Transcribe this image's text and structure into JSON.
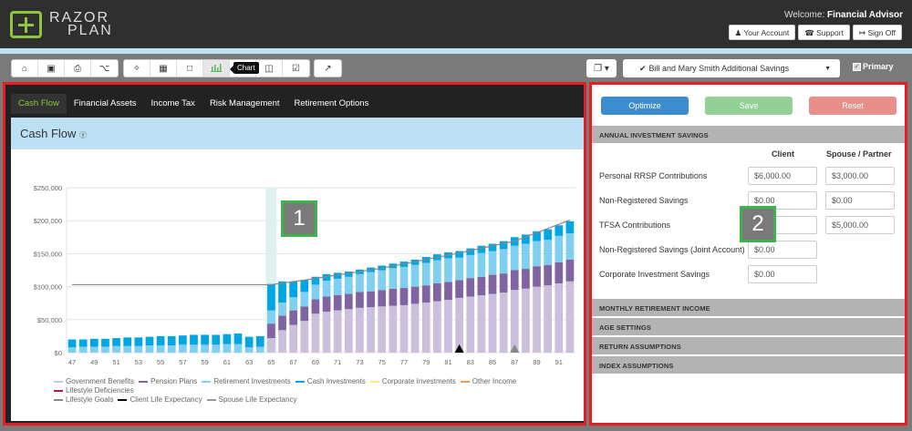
{
  "header": {
    "logo_line1": "RAZOR",
    "logo_line2": "PLAN",
    "welcome_label": "Welcome:",
    "welcome_user": "Financial Advisor",
    "buttons": [
      {
        "icon": "user-icon",
        "glyph": "♟",
        "label": "Your Account"
      },
      {
        "icon": "phone-icon",
        "glyph": "☎",
        "label": "Support"
      },
      {
        "icon": "sign-out-icon",
        "glyph": "↦",
        "label": "Sign Off"
      }
    ]
  },
  "toolbar": {
    "group1": [
      {
        "name": "home-icon",
        "glyph": "⌂"
      },
      {
        "name": "save-icon",
        "glyph": "▣"
      },
      {
        "name": "print-icon",
        "glyph": "⎙"
      },
      {
        "name": "share-icon",
        "glyph": "⌥"
      }
    ],
    "group2": [
      {
        "name": "wand-icon",
        "glyph": "✧"
      },
      {
        "name": "table-icon",
        "glyph": "▦"
      },
      {
        "name": "note-icon",
        "glyph": "□"
      },
      {
        "name": "bar-chart-icon",
        "glyph": "▐",
        "active": true
      },
      {
        "name": "spacer",
        "glyph": ""
      },
      {
        "name": "columns-icon",
        "glyph": "◫"
      },
      {
        "name": "checklist-icon",
        "glyph": "☑"
      }
    ],
    "group3": [
      {
        "name": "line-chart-icon",
        "glyph": "↗"
      }
    ],
    "tooltip": "Chart",
    "copy_glyph": "❐ ▾",
    "scenario_check_glyph": "✔",
    "scenario_label": "Bill and Mary Smith Additional Savings",
    "scenario_caret": "▼",
    "primary_label": "Primary",
    "primary_checked_glyph": "✓"
  },
  "left_panel": {
    "tabs": [
      {
        "label": "Cash Flow",
        "active": true
      },
      {
        "label": "Financial Assets"
      },
      {
        "label": "Income Tax"
      },
      {
        "label": "Risk Management"
      },
      {
        "label": "Retirement Options"
      }
    ],
    "section_title": "Cash Flow",
    "help_glyph": "ⓨ",
    "marker": "1"
  },
  "chart_data": {
    "type": "bar",
    "stacked": true,
    "title": "Cash Flow",
    "xlabel": "",
    "ylabel": "",
    "ylim": [
      0,
      250000
    ],
    "yticks": [
      "$0",
      "$50,000",
      "$100,000",
      "$150,000",
      "$200,000",
      "$250,000"
    ],
    "xtick_labels": [
      "47",
      "49",
      "51",
      "53",
      "55",
      "57",
      "59",
      "61",
      "63",
      "65",
      "67",
      "69",
      "71",
      "73",
      "75",
      "77",
      "79",
      "81",
      "83",
      "85",
      "87",
      "89",
      "91"
    ],
    "categories": [
      47,
      48,
      49,
      50,
      51,
      52,
      53,
      54,
      55,
      56,
      57,
      58,
      59,
      60,
      61,
      62,
      63,
      64,
      65,
      66,
      67,
      68,
      69,
      70,
      71,
      72,
      73,
      74,
      75,
      76,
      77,
      78,
      79,
      80,
      81,
      82,
      83,
      84,
      85,
      86,
      87,
      88,
      89,
      90,
      91,
      92
    ],
    "series": [
      {
        "name": "Government Benefits",
        "color": "#cbbfdb",
        "values": [
          0,
          0,
          0,
          0,
          0,
          0,
          0,
          0,
          0,
          0,
          0,
          0,
          0,
          0,
          0,
          0,
          0,
          0,
          22000,
          34000,
          42000,
          48000,
          59000,
          62000,
          64000,
          66000,
          68000,
          69000,
          70000,
          71000,
          72000,
          74000,
          76000,
          78000,
          80000,
          83000,
          85000,
          87000,
          89000,
          91000,
          95000,
          97000,
          100000,
          102000,
          105000,
          108000
        ]
      },
      {
        "name": "Pension Plans",
        "color": "#8064a2",
        "values": [
          0,
          0,
          0,
          0,
          0,
          0,
          0,
          0,
          0,
          0,
          0,
          0,
          0,
          0,
          0,
          0,
          0,
          0,
          22000,
          22000,
          22000,
          22000,
          22000,
          23000,
          23000,
          23000,
          24000,
          24000,
          25000,
          26000,
          26000,
          26000,
          26000,
          27000,
          27000,
          27000,
          28000,
          28000,
          29000,
          29000,
          30000,
          30000,
          31000,
          31000,
          32000,
          33000
        ]
      },
      {
        "name": "Retirement Investments",
        "color": "#7fd0f0",
        "values": [
          8000,
          9000,
          9000,
          9000,
          10000,
          10000,
          10000,
          11000,
          11000,
          11000,
          12000,
          12000,
          12000,
          12000,
          13000,
          13000,
          8000,
          9000,
          20000,
          20000,
          20000,
          22000,
          22000,
          24000,
          25000,
          26000,
          27000,
          29000,
          30000,
          31000,
          32000,
          33000,
          34000,
          35000,
          36000,
          34000,
          35000,
          36000,
          36000,
          37000,
          37000,
          38000,
          38000,
          38000,
          40000,
          40000
        ]
      },
      {
        "name": "Cash Investments",
        "color": "#00a5e3",
        "values": [
          12000,
          11000,
          12000,
          12000,
          12000,
          13000,
          13000,
          13000,
          14000,
          14000,
          14000,
          15000,
          15000,
          15000,
          15000,
          16000,
          16000,
          16000,
          40000,
          32000,
          24000,
          18000,
          12000,
          10000,
          9000,
          8000,
          7000,
          7000,
          7000,
          7000,
          8000,
          8000,
          9000,
          9000,
          9000,
          10000,
          10000,
          11000,
          11000,
          12000,
          13000,
          14000,
          15000,
          16000,
          16000,
          18000
        ]
      },
      {
        "name": "Corporate Investments",
        "color": "#ffe97f",
        "values": []
      },
      {
        "name": "Other Income",
        "color": "#f79646",
        "values": []
      },
      {
        "name": "Lifestyle Deficiencies",
        "color": "#c0143c",
        "values": []
      }
    ],
    "lines": [
      {
        "name": "Lifestyle Goals",
        "color": "#888888",
        "points": [
          [
            47,
            103000
          ],
          [
            65,
            103000
          ],
          [
            68,
            110000
          ],
          [
            75,
            128000
          ],
          [
            82,
            151000
          ],
          [
            87,
            169000
          ],
          [
            92,
            201000
          ]
        ]
      }
    ],
    "markers": [
      {
        "name": "Client Life Expectancy",
        "age": 82,
        "color": "#000000"
      },
      {
        "name": "Spouse Life Expectancy",
        "age": 87,
        "color": "#888888"
      }
    ],
    "highlight_age": 65,
    "legend": [
      {
        "label": "Government Benefits",
        "color": "#cbbfdb"
      },
      {
        "label": "Pension Plans",
        "color": "#8064a2"
      },
      {
        "label": "Retirement Investments",
        "color": "#7fd0f0"
      },
      {
        "label": "Cash Investments",
        "color": "#00a5e3"
      },
      {
        "label": "Corporate Investments",
        "color": "#ffe97f"
      },
      {
        "label": "Other Income",
        "color": "#f79646"
      },
      {
        "label": "Lifestyle Deficiencies",
        "color": "#c0143c"
      },
      {
        "label": "Lifestyle Goals",
        "color": "#888888"
      },
      {
        "label": "Client Life Expectancy",
        "color": "#000000"
      },
      {
        "label": "Spouse Life Expectancy",
        "color": "#999999"
      }
    ],
    "legend_position": "bottom",
    "grid": true
  },
  "right_panel": {
    "buttons": [
      {
        "label": "Optimize",
        "color": "#3c8dd0"
      },
      {
        "label": "Save",
        "color": "#93d096"
      },
      {
        "label": "Reset",
        "color": "#e88f8c"
      }
    ],
    "annual_title": "ANNUAL INVESTMENT SAVINGS",
    "col_client": "Client",
    "col_spouse": "Spouse / Partner",
    "rows": [
      {
        "label": "Personal RRSP Contributions",
        "client": "$6,000.00",
        "spouse": "$3,000.00"
      },
      {
        "label": "Non-Registered Savings",
        "client": "$0.00",
        "spouse": "$0.00"
      },
      {
        "label": "TFSA Contributions",
        "client": "$0.00",
        "spouse": "$5,000.00"
      },
      {
        "label": "Non-Registered Savings (Joint Account)",
        "client": "$0.00"
      },
      {
        "label": "Corporate Investment Savings",
        "client": "$0.00"
      }
    ],
    "sections": [
      "MONTHLY RETIREMENT INCOME",
      "AGE SETTINGS",
      "RETURN ASSUMPTIONS",
      "INDEX ASSUMPTIONS"
    ],
    "marker": "2"
  }
}
